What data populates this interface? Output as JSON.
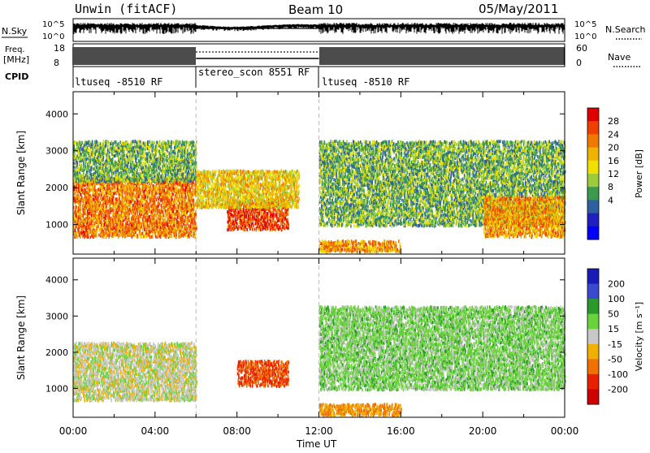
{
  "header": {
    "station": "Unwin (fitACF)",
    "beam": "Beam 10",
    "date": "05/May/2011"
  },
  "strips": {
    "nsky_label": "N.Sky",
    "nsky_ticks": [
      "10^5",
      "10^0"
    ],
    "nsky_right_ticks": [
      "10^5",
      "10^0"
    ],
    "nsearch_label": "N.Search",
    "freq_label_line1": "Freq.",
    "freq_label_line2": "[MHz]",
    "freq_ticks": [
      "18",
      "8"
    ],
    "nave_ticks": [
      "60",
      "0"
    ],
    "nave_label": "Nave",
    "cpid_label": "CPID",
    "cpid_segments": [
      {
        "label": "ltuseq -8510 RF",
        "start": "00:00",
        "end": "06:00"
      },
      {
        "label": "stereo_scon 8551 RF",
        "start": "06:00",
        "end": "12:00"
      },
      {
        "label": "ltuseq -8510 RF",
        "start": "12:00",
        "end": "24:00"
      }
    ]
  },
  "chart_data": [
    {
      "type": "heatmap",
      "title": "Power",
      "ylabel": "Slant Range [km]",
      "xlabel": "Time UT",
      "ylim": [
        200,
        4600
      ],
      "xlim": [
        0,
        24
      ],
      "yticks": [
        "1000",
        "2000",
        "3000",
        "4000"
      ],
      "xticks": [
        "00:00",
        "04:00",
        "08:00",
        "12:00",
        "16:00",
        "20:00",
        "00:00"
      ],
      "colorbar": {
        "label": "Power [dB]",
        "ticks": [
          "28",
          "24",
          "20",
          "16",
          "12",
          "8",
          "4"
        ],
        "colors": [
          "#e00000",
          "#f04000",
          "#f07a00",
          "#f0b400",
          "#f0e000",
          "#9ccc3a",
          "#3a9a4e",
          "#2e5fa0",
          "#2020c0",
          "#0000ff"
        ]
      },
      "regions": [
        {
          "name": "main",
          "t0": 0,
          "t1": 6,
          "r0": 700,
          "r1": 2300,
          "level": 20
        },
        {
          "name": "upper-scatter",
          "t0": 0,
          "t1": 6,
          "r0": 2200,
          "r1": 3300,
          "level": 6
        },
        {
          "name": "midday-patch",
          "t0": 7.5,
          "t1": 10.5,
          "r0": 900,
          "r1": 1700,
          "level": 24
        },
        {
          "name": "afternoon-band",
          "t0": 6,
          "t1": 11,
          "r0": 1500,
          "r1": 2500,
          "level": 14
        },
        {
          "name": "near-range",
          "t0": 12,
          "t1": 16,
          "r0": 300,
          "r1": 600,
          "level": 18
        },
        {
          "name": "evening",
          "t0": 12,
          "t1": 24,
          "r0": 1000,
          "r1": 3300,
          "level": 6
        },
        {
          "name": "late-evening",
          "t0": 20,
          "t1": 24,
          "r0": 700,
          "r1": 1800,
          "level": 18
        }
      ]
    },
    {
      "type": "heatmap",
      "title": "Velocity",
      "ylabel": "Slant Range [km]",
      "xlabel": "Time UT",
      "ylim": [
        200,
        4600
      ],
      "xlim": [
        0,
        24
      ],
      "yticks": [
        "1000",
        "2000",
        "3000",
        "4000"
      ],
      "xticks": [
        "00:00",
        "04:00",
        "08:00",
        "12:00",
        "16:00",
        "20:00",
        "00:00"
      ],
      "colorbar": {
        "label": "Velocity [m s⁻¹]",
        "ticks": [
          "200",
          "100",
          "50",
          "15",
          "-15",
          "-50",
          "-100",
          "-200"
        ],
        "colors": [
          "#1a1ab8",
          "#3a4ad0",
          "#2a9a2a",
          "#6ad23a",
          "#c8c8c8",
          "#f0b000",
          "#f07000",
          "#e82000",
          "#d00000"
        ]
      },
      "regions": [
        {
          "name": "main",
          "t0": 0,
          "t1": 6,
          "r0": 700,
          "r1": 2300,
          "level": 0
        },
        {
          "name": "midday-patch",
          "t0": 8,
          "t1": 10.5,
          "r0": 1100,
          "r1": 1800,
          "level": -100
        },
        {
          "name": "near-range",
          "t0": 12,
          "t1": 16,
          "r0": 300,
          "r1": 600,
          "level": -50
        },
        {
          "name": "evening",
          "t0": 12,
          "t1": 24,
          "r0": 1000,
          "r1": 3300,
          "level": 30
        }
      ]
    }
  ],
  "xaxis_label": "Time UT"
}
